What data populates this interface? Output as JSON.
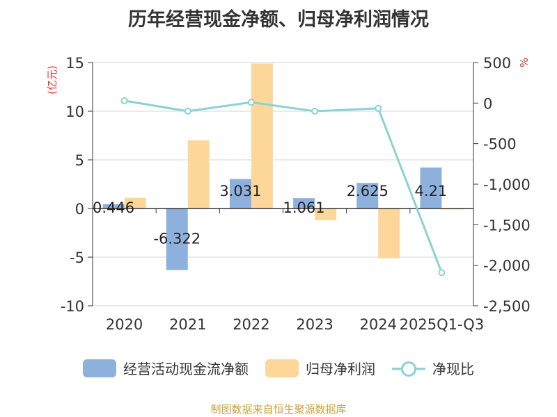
{
  "chart_data": {
    "type": "bar+line",
    "title": "历年经营现金净额、归母净利润情况",
    "categories": [
      "2020",
      "2021",
      "2022",
      "2023",
      "2024",
      "2025Q1-Q3"
    ],
    "y_left": {
      "label": "(亿元)",
      "ticks": [
        15,
        10,
        5,
        0,
        -5,
        -10
      ],
      "ylim": [
        -10,
        15
      ]
    },
    "y_right": {
      "label": "%",
      "ticks": [
        "500",
        "0",
        "-500",
        "-1,000",
        "-1,500",
        "-2,000",
        "-2,500"
      ],
      "tick_values": [
        500,
        0,
        -500,
        -1000,
        -1500,
        -2000,
        -2500
      ],
      "ylim": [
        -2500,
        500
      ]
    },
    "series": [
      {
        "name": "经营活动现金流净额",
        "type": "bar",
        "axis": "left",
        "color": "#8eb0dd",
        "values": [
          0.446,
          -6.322,
          3.031,
          1.061,
          2.625,
          4.21
        ],
        "labels": [
          "0.446",
          "-6.322",
          "3.031",
          "1.061",
          "2.625",
          "4.21"
        ]
      },
      {
        "name": "归母净利润",
        "type": "bar",
        "axis": "left",
        "color": "#fdd79a",
        "values": [
          1.1,
          7.0,
          14.9,
          -1.2,
          -5.1,
          -0.1
        ]
      },
      {
        "name": "净现比",
        "type": "line",
        "axis": "right",
        "color": "#8ad2d6",
        "values": [
          30,
          -100,
          10,
          -100,
          -65,
          -2090
        ]
      }
    ],
    "grid": true,
    "legend_position": "bottom"
  },
  "source": "制图数据来自恒生聚源数据库"
}
